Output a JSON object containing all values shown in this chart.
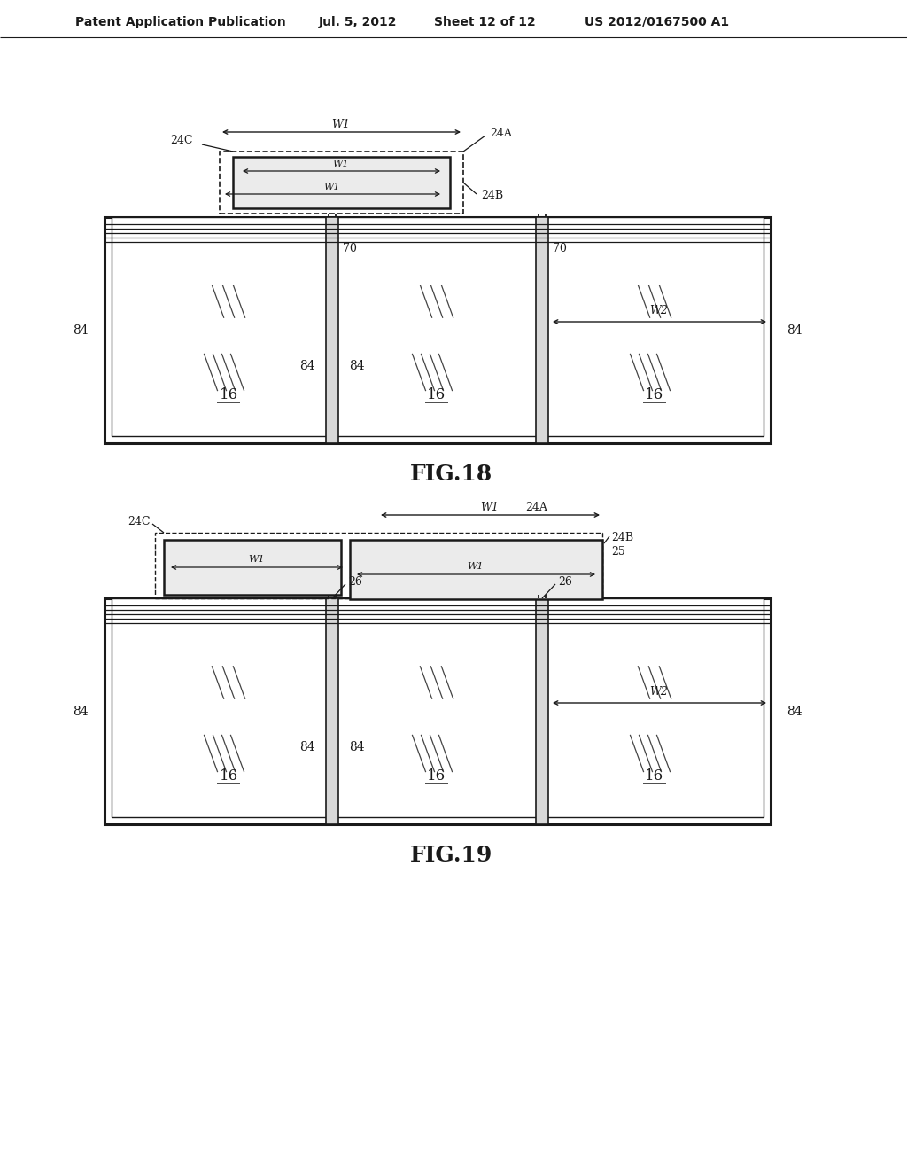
{
  "bg_color": "#ffffff",
  "header_text": "Patent Application Publication",
  "header_date": "Jul. 5, 2012",
  "header_sheet": "Sheet 12 of 12",
  "header_patent": "US 2012/0167500 A1",
  "fig18_label": "FIG.18",
  "fig19_label": "FIG.19",
  "lc": "#1a1a1a",
  "tc": "#1a1a1a",
  "gray_fill": "#d8d8d8",
  "light_gray": "#ebebeb"
}
